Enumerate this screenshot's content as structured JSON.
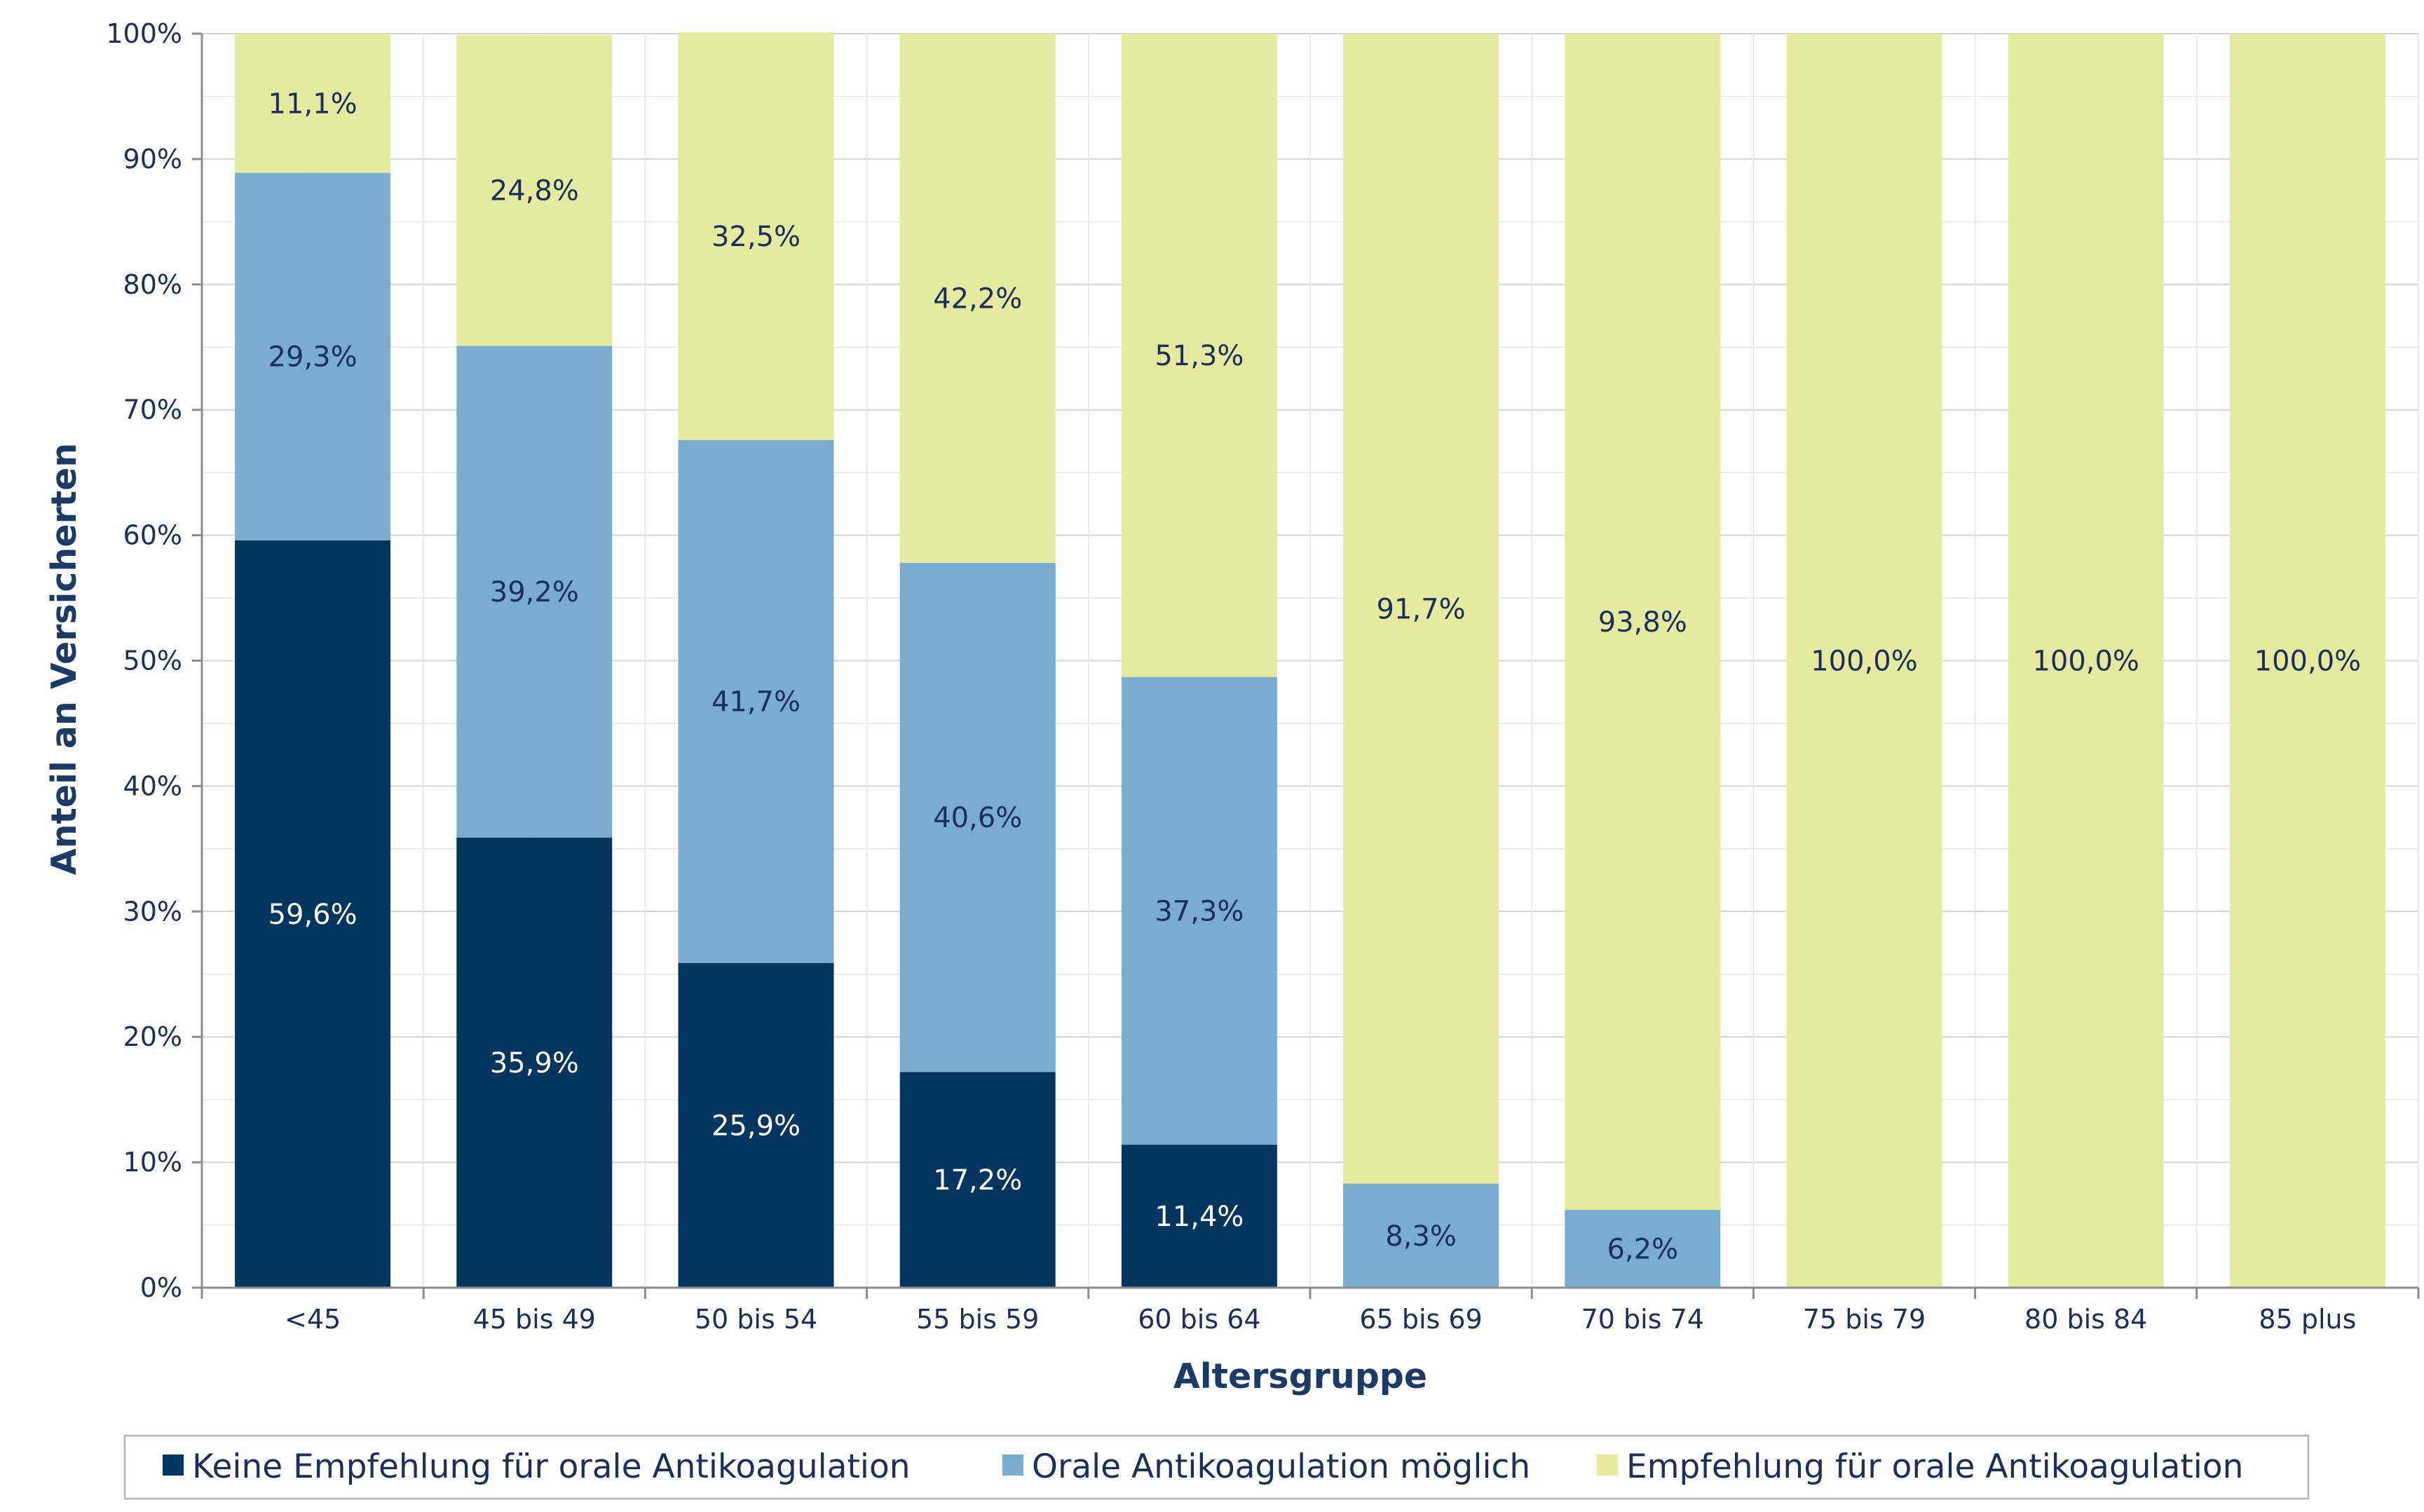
{
  "chart_data": {
    "type": "bar",
    "stacked": true,
    "title": "",
    "xlabel": "Altersgruppe",
    "ylabel": "Anteil an Versicherten",
    "ylim": [
      0,
      100
    ],
    "y_ticks": [
      "0%",
      "10%",
      "20%",
      "30%",
      "40%",
      "50%",
      "60%",
      "70%",
      "80%",
      "90%",
      "100%"
    ],
    "categories": [
      "<45",
      "45 bis 49",
      "50 bis 54",
      "55 bis 59",
      "60 bis 64",
      "65 bis 69",
      "70 bis 74",
      "75 bis 79",
      "80 bis 84",
      "85 plus"
    ],
    "series": [
      {
        "name": "Keine Empfehlung für orale Antikoagulation",
        "color": "#02355f",
        "label_color": "#ffffff",
        "values": [
          59.6,
          35.9,
          25.9,
          17.2,
          11.4,
          0,
          0,
          0,
          0,
          0
        ],
        "labels": [
          "59,6%",
          "35,9%",
          "25,9%",
          "17,2%",
          "11,4%",
          "",
          "",
          "",
          "",
          ""
        ]
      },
      {
        "name": "Orale Antikoagulation möglich",
        "color": "#79accf",
        "label_color": "#1b2f5e",
        "values": [
          29.3,
          39.2,
          41.7,
          40.6,
          37.3,
          8.3,
          6.2,
          0,
          0,
          0
        ],
        "labels": [
          "29,3%",
          "39,2%",
          "41,7%",
          "40,6%",
          "37,3%",
          "8,3%",
          "6,2%",
          "",
          "",
          ""
        ]
      },
      {
        "name": "Empfehlung für orale Antikoagulation",
        "color": "#e6ea9e",
        "label_color": "#1b2f5e",
        "values": [
          11.1,
          24.8,
          32.5,
          42.2,
          51.3,
          91.7,
          93.8,
          100.0,
          100.0,
          100.0
        ],
        "labels": [
          "11,1%",
          "24,8%",
          "32,5%",
          "42,2%",
          "51,3%",
          "91,7%",
          "93,8%",
          "100,0%",
          "100,0%",
          "100,0%"
        ]
      }
    ],
    "grid": true,
    "legend": "bottom"
  }
}
